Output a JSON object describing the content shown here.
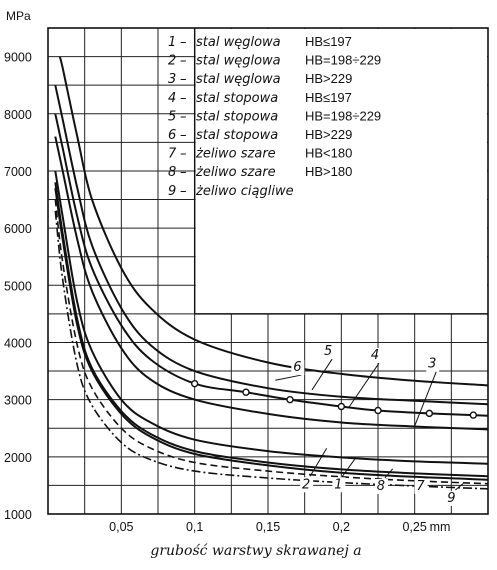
{
  "chart_data": {
    "type": "line",
    "title": "",
    "ylabel_unit": "MPa",
    "xlabel": "grubość warstwy skrawanej a",
    "x_unit": "mm",
    "xlim": [
      0,
      0.3
    ],
    "ylim": [
      1000,
      9500
    ],
    "x_ticks": [
      "0,05",
      "0,1",
      "0,15",
      "0,2",
      "0,25"
    ],
    "x_tick_values": [
      0.05,
      0.1,
      0.15,
      0.2,
      0.25
    ],
    "y_ticks": [
      "1000",
      "2000",
      "3000",
      "4000",
      "5000",
      "6000",
      "7000",
      "8000",
      "9000"
    ],
    "y_tick_values": [
      1000,
      2000,
      3000,
      4000,
      5000,
      6000,
      7000,
      8000,
      9000
    ],
    "grid": true,
    "legend_position": "top-right",
    "legend": [
      {
        "num": "1",
        "material": "stal węglowa",
        "hb": "HB≤197"
      },
      {
        "num": "2",
        "material": "stal węglowa",
        "hb": "HB=198÷229"
      },
      {
        "num": "3",
        "material": "stal węglowa",
        "hb": "HB>229"
      },
      {
        "num": "4",
        "material": "stal stopowa",
        "hb": "HB≤197"
      },
      {
        "num": "5",
        "material": "stal stopowa",
        "hb": "HB=198÷229"
      },
      {
        "num": "6",
        "material": "stal stopowa",
        "hb": "HB>229"
      },
      {
        "num": "7",
        "material": "żeliwo szare",
        "hb": "HB<180"
      },
      {
        "num": "8",
        "material": "żeliwo szare",
        "hb": "HB>180"
      },
      {
        "num": "9",
        "material": "żeliwo ciągliwe",
        "hb": ""
      }
    ],
    "series": [
      {
        "name": "1",
        "style": "solid",
        "x": [
          0.005,
          0.01,
          0.02,
          0.03,
          0.05,
          0.07,
          0.1,
          0.15,
          0.2,
          0.25,
          0.3
        ],
        "values": [
          6700,
          5800,
          4300,
          3500,
          2750,
          2350,
          2050,
          1850,
          1720,
          1650,
          1600
        ]
      },
      {
        "name": "2",
        "style": "solid",
        "x": [
          0.005,
          0.01,
          0.02,
          0.03,
          0.05,
          0.07,
          0.1,
          0.15,
          0.2,
          0.25,
          0.3
        ],
        "values": [
          7000,
          6200,
          4700,
          3850,
          3000,
          2600,
          2300,
          2100,
          1990,
          1920,
          1880
        ]
      },
      {
        "name": "3",
        "style": "solid",
        "x": [
          0.005,
          0.01,
          0.02,
          0.03,
          0.05,
          0.07,
          0.1,
          0.15,
          0.2,
          0.25,
          0.3
        ],
        "values": [
          7600,
          7000,
          5800,
          4900,
          3900,
          3350,
          3000,
          2750,
          2600,
          2530,
          2480
        ]
      },
      {
        "name": "4",
        "style": "circles",
        "x": [
          0.005,
          0.01,
          0.02,
          0.03,
          0.05,
          0.07,
          0.1,
          0.135,
          0.165,
          0.2,
          0.225,
          0.26,
          0.29,
          0.3
        ],
        "values": [
          8000,
          7400,
          6200,
          5300,
          4300,
          3700,
          3280,
          3130,
          3000,
          2880,
          2810,
          2760,
          2730,
          2720
        ]
      },
      {
        "name": "5",
        "style": "solid",
        "x": [
          0.005,
          0.01,
          0.02,
          0.03,
          0.05,
          0.07,
          0.1,
          0.15,
          0.2,
          0.25,
          0.3
        ],
        "values": [
          8500,
          7900,
          6700,
          5700,
          4600,
          3950,
          3500,
          3200,
          3050,
          2980,
          2920
        ]
      },
      {
        "name": "6",
        "style": "solid",
        "x": [
          0.008,
          0.01,
          0.02,
          0.03,
          0.05,
          0.07,
          0.1,
          0.15,
          0.2,
          0.25,
          0.3
        ],
        "values": [
          9000,
          8800,
          7600,
          6500,
          5300,
          4600,
          4050,
          3650,
          3450,
          3330,
          3250
        ]
      },
      {
        "name": "7",
        "style": "dashed",
        "x": [
          0.005,
          0.01,
          0.02,
          0.03,
          0.05,
          0.07,
          0.1,
          0.15,
          0.2,
          0.25,
          0.3
        ],
        "values": [
          6500,
          5400,
          3950,
          3200,
          2500,
          2150,
          1900,
          1750,
          1650,
          1580,
          1530
        ]
      },
      {
        "name": "8",
        "style": "solid",
        "x": [
          0.005,
          0.01,
          0.02,
          0.03,
          0.05,
          0.07,
          0.1,
          0.15,
          0.2,
          0.25,
          0.3
        ],
        "values": [
          6800,
          5900,
          4400,
          3550,
          2800,
          2400,
          2100,
          1900,
          1780,
          1710,
          1660
        ]
      },
      {
        "name": "9",
        "style": "dashdot",
        "x": [
          0.005,
          0.01,
          0.02,
          0.03,
          0.05,
          0.07,
          0.1,
          0.15,
          0.2,
          0.25,
          0.3
        ],
        "values": [
          6300,
          5100,
          3600,
          2900,
          2250,
          1950,
          1750,
          1630,
          1550,
          1490,
          1440
        ]
      }
    ],
    "curve_labels": [
      {
        "num": "6",
        "x": 0.17,
        "y": 3500
      },
      {
        "num": "5",
        "x": 0.191,
        "y": 3780
      },
      {
        "num": "4",
        "x": 0.223,
        "y": 3710
      },
      {
        "num": "3",
        "x": 0.262,
        "y": 3560
      },
      {
        "num": "2",
        "x": 0.176,
        "y": 1450
      },
      {
        "num": "1",
        "x": 0.198,
        "y": 1450
      },
      {
        "num": "8",
        "x": 0.227,
        "y": 1420
      },
      {
        "num": "7",
        "x": 0.254,
        "y": 1420
      },
      {
        "num": "9",
        "x": 0.275,
        "y": 1210
      }
    ]
  }
}
